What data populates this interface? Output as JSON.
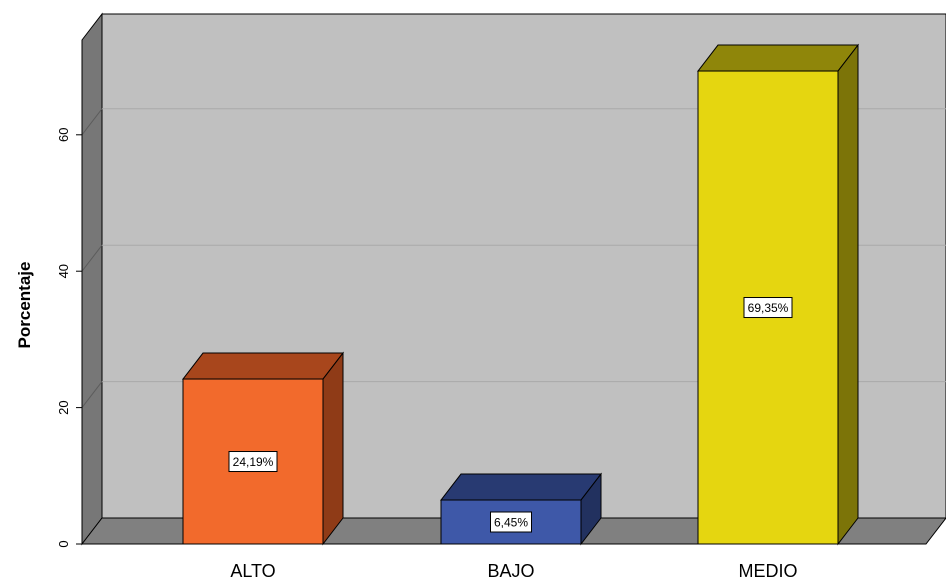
{
  "chart_data": {
    "type": "bar",
    "title": "",
    "xlabel": "",
    "ylabel": "Porcentaje",
    "categories": [
      "ALTO",
      "BAJO",
      "MEDIO"
    ],
    "values": [
      24.19,
      6.45,
      69.35
    ],
    "data_labels": [
      "24,19%",
      "6,45%",
      "69,35%"
    ],
    "yticks": [
      0,
      20,
      40,
      60
    ],
    "ytick_labels": [
      "0",
      "20",
      "40",
      "60"
    ],
    "ylim": [
      0,
      70
    ],
    "grid": true,
    "legend": "none",
    "colors": {
      "front": [
        "#f26a2c",
        "#3e58a8",
        "#e5d610"
      ],
      "top": [
        "#a8461c",
        "#283a72",
        "#8f860a"
      ],
      "side": [
        "#8f3b17",
        "#22315f",
        "#7c7408"
      ],
      "plot_back": "#c0c0c0",
      "wall_left": "#777777",
      "floor": "#808080",
      "gridline": "#a9a9a9"
    }
  }
}
